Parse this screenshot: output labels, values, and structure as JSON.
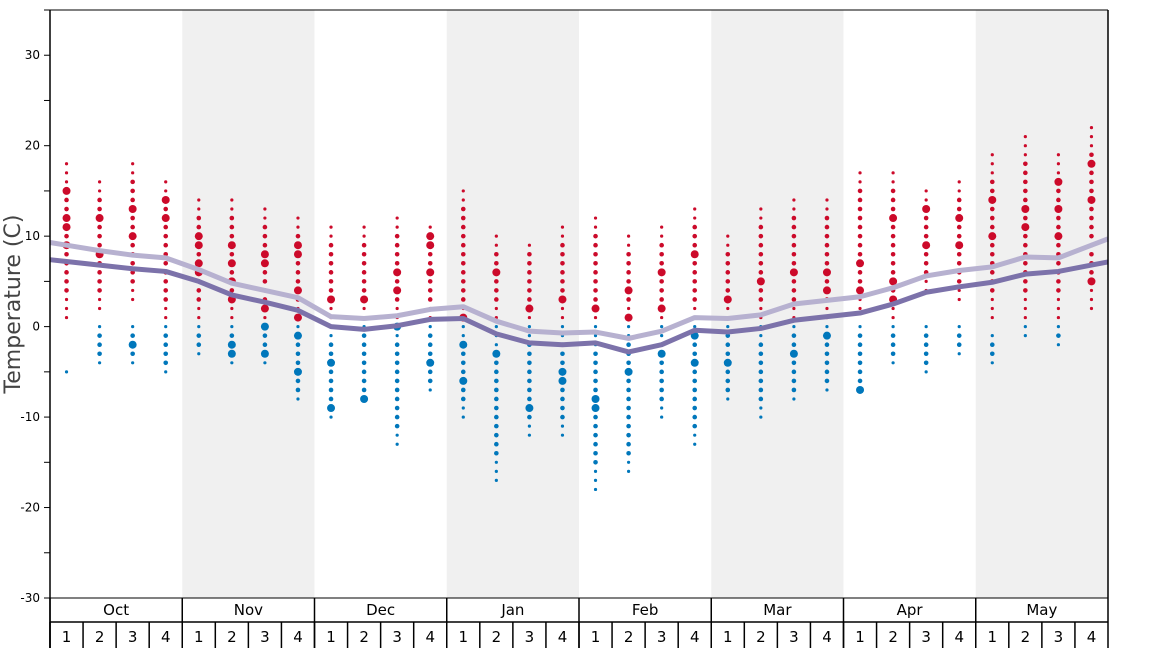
{
  "chart_data": {
    "type": "scatter",
    "title": "",
    "ylabel": "Temperature (C)",
    "xlabel": "",
    "ylim": [
      -30,
      35
    ],
    "yticks": [
      -30,
      -20,
      -10,
      0,
      10,
      20,
      30
    ],
    "months": [
      "Oct",
      "Nov",
      "Dec",
      "Jan",
      "Feb",
      "Mar",
      "Apr",
      "May"
    ],
    "week_labels": [
      "1",
      "2",
      "3",
      "4"
    ],
    "colors": {
      "warm": "#cc0a2a",
      "cold": "#0077bb",
      "line_light": "#b7b1d0",
      "line_dark": "#7c72aa",
      "shade": "#f0f0f0"
    },
    "weeks": [
      {
        "warm": [
          1,
          18
        ],
        "warm_big": [
          15,
          12,
          11,
          9
        ],
        "cold": [
          -5,
          -5
        ],
        "cold_big": []
      },
      {
        "warm": [
          2,
          16
        ],
        "warm_big": [
          12,
          8
        ],
        "cold": [
          -4,
          0
        ],
        "cold_big": []
      },
      {
        "warm": [
          3,
          18
        ],
        "warm_big": [
          13,
          10
        ],
        "cold": [
          -4,
          0
        ],
        "cold_big": [
          -2
        ]
      },
      {
        "warm": [
          1,
          16
        ],
        "warm_big": [
          14,
          12
        ],
        "cold": [
          -5,
          0
        ],
        "cold_big": []
      },
      {
        "warm": [
          1,
          14
        ],
        "warm_big": [
          10,
          9,
          7,
          6
        ],
        "cold": [
          -3,
          0
        ],
        "cold_big": []
      },
      {
        "warm": [
          1,
          14
        ],
        "warm_big": [
          9,
          7,
          5,
          3
        ],
        "cold": [
          -4,
          0
        ],
        "cold_big": [
          -2,
          -3
        ]
      },
      {
        "warm": [
          1,
          13
        ],
        "warm_big": [
          8,
          7,
          2
        ],
        "cold": [
          -4,
          0
        ],
        "cold_big": [
          0,
          -3
        ]
      },
      {
        "warm": [
          1,
          12
        ],
        "warm_big": [
          9,
          8,
          4,
          1
        ],
        "cold": [
          -8,
          0
        ],
        "cold_big": [
          -1,
          -5
        ]
      },
      {
        "warm": [
          1,
          11
        ],
        "warm_big": [
          3
        ],
        "cold": [
          -10,
          0
        ],
        "cold_big": [
          -4,
          -9
        ]
      },
      {
        "warm": [
          1,
          11
        ],
        "warm_big": [
          3
        ],
        "cold": [
          -8,
          0
        ],
        "cold_big": [
          -8
        ]
      },
      {
        "warm": [
          1,
          12
        ],
        "warm_big": [
          6,
          4
        ],
        "cold": [
          -13,
          0
        ],
        "cold_big": [
          0
        ]
      },
      {
        "warm": [
          1,
          11
        ],
        "warm_big": [
          10,
          9,
          6
        ],
        "cold": [
          -7,
          0
        ],
        "cold_big": [
          -4
        ]
      },
      {
        "warm": [
          1,
          15
        ],
        "warm_big": [
          1
        ],
        "cold": [
          -10,
          0
        ],
        "cold_big": [
          -2,
          -6
        ]
      },
      {
        "warm": [
          1,
          10
        ],
        "warm_big": [
          6
        ],
        "cold": [
          -17,
          0
        ],
        "cold_big": [
          -3
        ]
      },
      {
        "warm": [
          1,
          9
        ],
        "warm_big": [
          2
        ],
        "cold": [
          -12,
          0
        ],
        "cold_big": [
          -9
        ]
      },
      {
        "warm": [
          1,
          11
        ],
        "warm_big": [
          3
        ],
        "cold": [
          -12,
          0
        ],
        "cold_big": [
          -5,
          -6
        ]
      },
      {
        "warm": [
          1,
          12
        ],
        "warm_big": [
          2
        ],
        "cold": [
          -18,
          0
        ],
        "cold_big": [
          -8,
          -9
        ]
      },
      {
        "warm": [
          1,
          10
        ],
        "warm_big": [
          4,
          1
        ],
        "cold": [
          -16,
          0
        ],
        "cold_big": [
          -5
        ]
      },
      {
        "warm": [
          1,
          11
        ],
        "warm_big": [
          6,
          2
        ],
        "cold": [
          -10,
          0
        ],
        "cold_big": [
          -3
        ]
      },
      {
        "warm": [
          1,
          13
        ],
        "warm_big": [
          8
        ],
        "cold": [
          -13,
          0
        ],
        "cold_big": [
          -1,
          -4
        ]
      },
      {
        "warm": [
          1,
          10
        ],
        "warm_big": [
          3
        ],
        "cold": [
          -8,
          0
        ],
        "cold_big": [
          -4
        ]
      },
      {
        "warm": [
          1,
          13
        ],
        "warm_big": [
          5
        ],
        "cold": [
          -10,
          0
        ],
        "cold_big": []
      },
      {
        "warm": [
          1,
          14
        ],
        "warm_big": [
          6
        ],
        "cold": [
          -8,
          0
        ],
        "cold_big": [
          -3
        ]
      },
      {
        "warm": [
          1,
          14
        ],
        "warm_big": [
          6,
          4
        ],
        "cold": [
          -7,
          0
        ],
        "cold_big": [
          -1
        ]
      },
      {
        "warm": [
          2,
          17
        ],
        "warm_big": [
          7,
          4
        ],
        "cold": [
          -7,
          0
        ],
        "cold_big": [
          -7
        ]
      },
      {
        "warm": [
          1,
          17
        ],
        "warm_big": [
          12,
          5,
          3
        ],
        "cold": [
          -4,
          0
        ],
        "cold_big": []
      },
      {
        "warm": [
          4,
          15
        ],
        "warm_big": [
          13,
          9
        ],
        "cold": [
          -5,
          0
        ],
        "cold_big": []
      },
      {
        "warm": [
          3,
          16
        ],
        "warm_big": [
          12,
          9
        ],
        "cold": [
          -3,
          0
        ],
        "cold_big": []
      },
      {
        "warm": [
          1,
          19
        ],
        "warm_big": [
          14,
          10
        ],
        "cold": [
          -4,
          -1
        ],
        "cold_big": []
      },
      {
        "warm": [
          1,
          21
        ],
        "warm_big": [
          13,
          11
        ],
        "cold": [
          -1,
          0
        ],
        "cold_big": []
      },
      {
        "warm": [
          1,
          19
        ],
        "warm_big": [
          16,
          13,
          10
        ],
        "cold": [
          -2,
          0
        ],
        "cold_big": []
      },
      {
        "warm": [
          2,
          22
        ],
        "warm_big": [
          18,
          14,
          5
        ],
        "cold": null,
        "cold_big": []
      }
    ],
    "series": [
      {
        "name": "light-line",
        "values": [
          9.0,
          8.4,
          7.9,
          7.6,
          6.3,
          4.8,
          4.0,
          3.2,
          1.1,
          0.9,
          1.2,
          1.9,
          2.2,
          0.6,
          -0.5,
          -0.7,
          -0.6,
          -1.3,
          -0.5,
          1.0,
          0.9,
          1.3,
          2.5,
          2.9,
          3.3,
          4.3,
          5.6,
          6.2,
          6.6,
          7.7,
          7.6,
          9.0
        ]
      },
      {
        "name": "dark-line",
        "values": [
          7.2,
          6.8,
          6.4,
          6.1,
          5.0,
          3.5,
          2.7,
          1.8,
          0.0,
          -0.3,
          0.1,
          0.8,
          0.9,
          -0.8,
          -1.8,
          -2.0,
          -1.8,
          -2.8,
          -2.0,
          -0.4,
          -0.6,
          -0.2,
          0.7,
          1.1,
          1.5,
          2.5,
          3.8,
          4.4,
          4.9,
          5.8,
          6.1,
          6.8
        ]
      }
    ]
  }
}
